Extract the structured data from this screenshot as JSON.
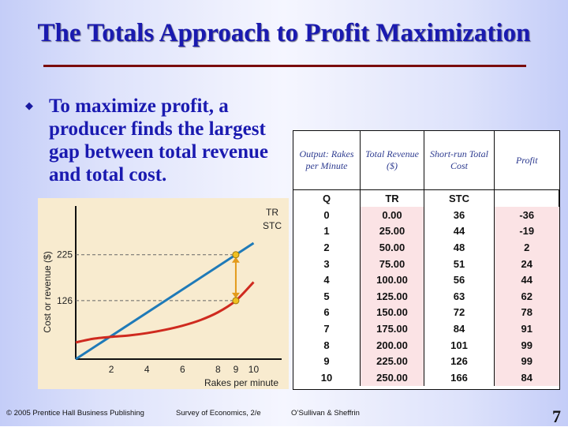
{
  "slide": {
    "title": "The Totals Approach to Profit Maximization",
    "bullet_glyph": "u",
    "bullet_text": "To maximize profit, a producer finds the largest gap between total revenue and total cost.",
    "footer": {
      "publisher": "© 2005 Prentice Hall Business Publishing",
      "book": "Survey of Economics, 2/e",
      "authors": "O’Sullivan & Sheffrin",
      "page": "7"
    },
    "colors": {
      "title": "#1a1ab0",
      "rule": "#7a0c0c",
      "tr_line": "#1f7ab8",
      "stc_curve": "#cf2a1f",
      "gap_arrow": "#e39a1a",
      "highlight": "#fbe3e5"
    }
  },
  "chart_data": {
    "type": "line",
    "xlabel": "Rakes per minute",
    "ylabel": "Cost or revenue ($)",
    "x_ticks": [
      2,
      4,
      6,
      8,
      9,
      10
    ],
    "y_ticks": [
      126,
      225
    ],
    "series": [
      {
        "name": "TR",
        "x": [
          0,
          1,
          2,
          3,
          4,
          5,
          6,
          7,
          8,
          9,
          10
        ],
        "y": [
          0,
          25,
          50,
          75,
          100,
          125,
          150,
          175,
          200,
          225,
          250
        ]
      },
      {
        "name": "STC",
        "x": [
          0,
          1,
          2,
          3,
          4,
          5,
          6,
          7,
          8,
          9,
          10
        ],
        "y": [
          36,
          44,
          48,
          51,
          56,
          63,
          72,
          84,
          101,
          126,
          166
        ]
      }
    ],
    "annotation": {
      "x": 9,
      "y_top": 225,
      "y_bottom": 126
    }
  },
  "table": {
    "headers": [
      "Output: Rakes per Minute",
      "Total Revenue ($)",
      "Short-run Total Cost",
      "Profit"
    ],
    "abbr": [
      "Q",
      "TR",
      "STC",
      ""
    ],
    "rows": [
      [
        "0",
        "0.00",
        "36",
        "-36"
      ],
      [
        "1",
        "25.00",
        "44",
        "-19"
      ],
      [
        "2",
        "50.00",
        "48",
        "2"
      ],
      [
        "3",
        "75.00",
        "51",
        "24"
      ],
      [
        "4",
        "100.00",
        "56",
        "44"
      ],
      [
        "5",
        "125.00",
        "63",
        "62"
      ],
      [
        "6",
        "150.00",
        "72",
        "78"
      ],
      [
        "7",
        "175.00",
        "84",
        "91"
      ],
      [
        "8",
        "200.00",
        "101",
        "99"
      ],
      [
        "9",
        "225.00",
        "126",
        "99"
      ],
      [
        "10",
        "250.00",
        "166",
        "84"
      ]
    ]
  }
}
